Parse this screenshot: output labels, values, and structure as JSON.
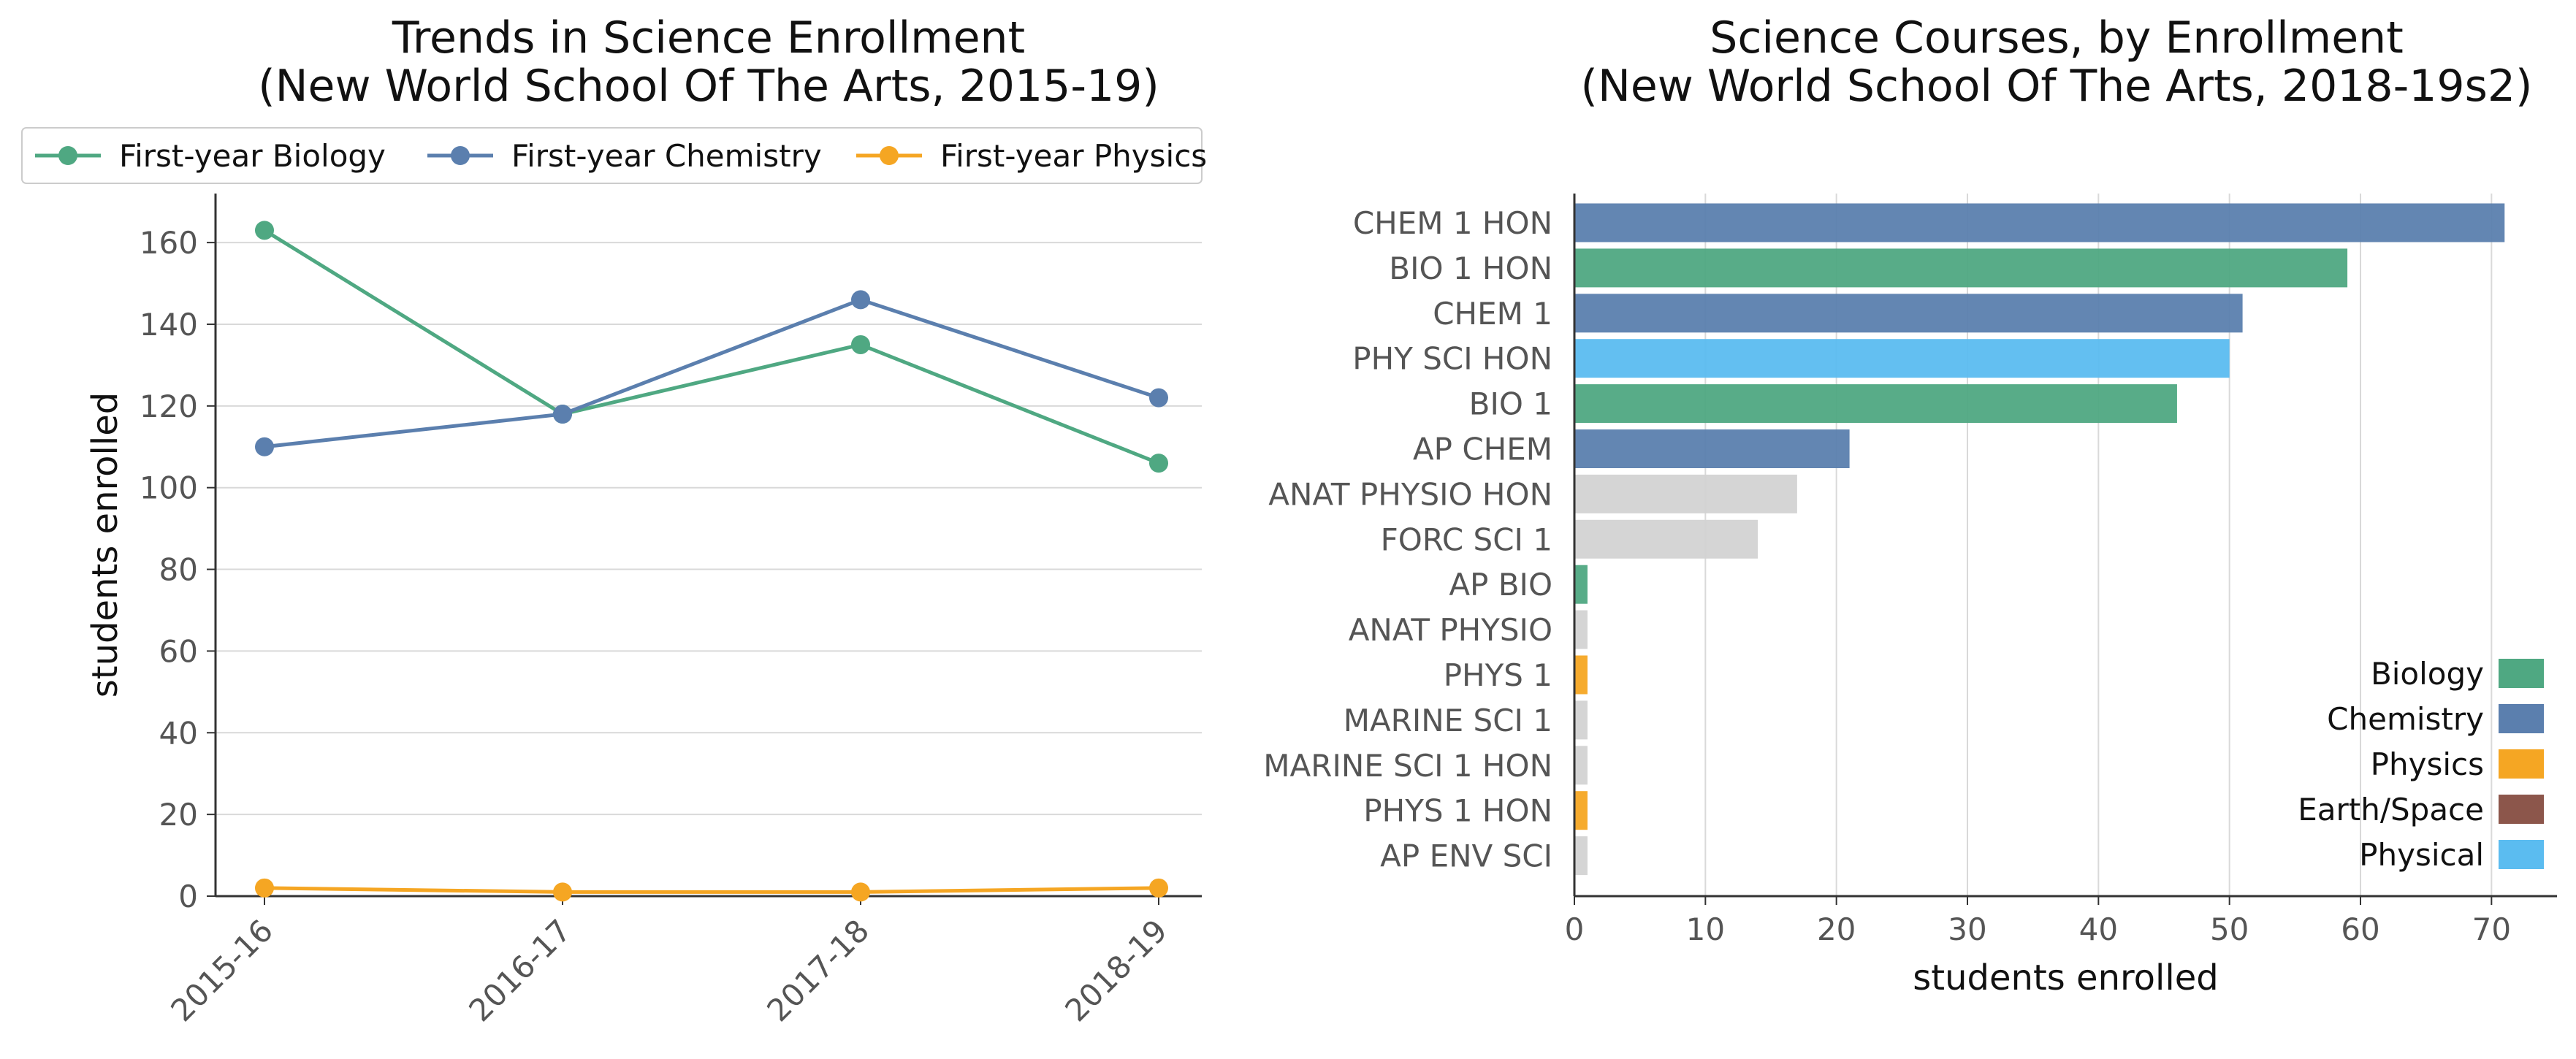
{
  "colors": {
    "biology": "#4fa882",
    "chemistry": "#5b7fae",
    "physics": "#f5a623",
    "earth_space": "#8c564b",
    "physical": "#5bbcf0",
    "other": "#d3d3d3",
    "grid": "#d9d9d9",
    "axis": "#333333"
  },
  "chart_data": [
    {
      "type": "line",
      "title": [
        "Trends in Science Enrollment",
        "(New World School Of The Arts, 2015-19)"
      ],
      "xlabel": "",
      "ylabel": "students enrolled",
      "categories": [
        "2015-16",
        "2016-17",
        "2017-18",
        "2018-19"
      ],
      "ylim": [
        0,
        172
      ],
      "yticks": [
        0,
        20,
        40,
        60,
        80,
        100,
        120,
        140,
        160
      ],
      "grid": "horizontal",
      "legend_placement": "top",
      "series": [
        {
          "name": "First-year Biology",
          "color_key": "biology",
          "values": [
            163,
            118,
            135,
            106
          ]
        },
        {
          "name": "First-year Chemistry",
          "color_key": "chemistry",
          "values": [
            110,
            118,
            146,
            122
          ]
        },
        {
          "name": "First-year Physics",
          "color_key": "physics",
          "values": [
            2,
            1,
            1,
            2
          ]
        }
      ]
    },
    {
      "type": "bar",
      "orientation": "horizontal",
      "title": [
        "Science Courses, by Enrollment",
        "(New World School Of The Arts, 2018-19s2)"
      ],
      "xlabel": "students enrolled",
      "ylabel": "",
      "xlim": [
        0,
        75
      ],
      "xticks": [
        0,
        10,
        20,
        30,
        40,
        50,
        60,
        70
      ],
      "grid": "vertical",
      "legend_placement": "lower-right",
      "categories": [
        "CHEM 1 HON",
        "BIO 1 HON",
        "CHEM 1",
        "PHY SCI HON",
        "BIO 1",
        "AP CHEM",
        "ANAT PHYSIO HON",
        "FORC SCI 1",
        "AP BIO",
        "ANAT PHYSIO",
        "PHYS 1",
        "MARINE SCI 1",
        "MARINE SCI 1 HON",
        "PHYS 1 HON",
        "AP ENV SCI"
      ],
      "values": [
        71,
        59,
        51,
        50,
        46,
        21,
        17,
        14,
        1,
        1,
        1,
        1,
        1,
        1,
        1
      ],
      "color_keys": [
        "chemistry",
        "biology",
        "chemistry",
        "physical",
        "biology",
        "chemistry",
        "other",
        "other",
        "biology",
        "other",
        "physics",
        "other",
        "other",
        "physics",
        "other"
      ],
      "legend": [
        {
          "name": "Biology",
          "color_key": "biology"
        },
        {
          "name": "Chemistry",
          "color_key": "chemistry"
        },
        {
          "name": "Physics",
          "color_key": "physics"
        },
        {
          "name": "Earth/Space",
          "color_key": "earth_space"
        },
        {
          "name": "Physical",
          "color_key": "physical"
        }
      ]
    }
  ]
}
